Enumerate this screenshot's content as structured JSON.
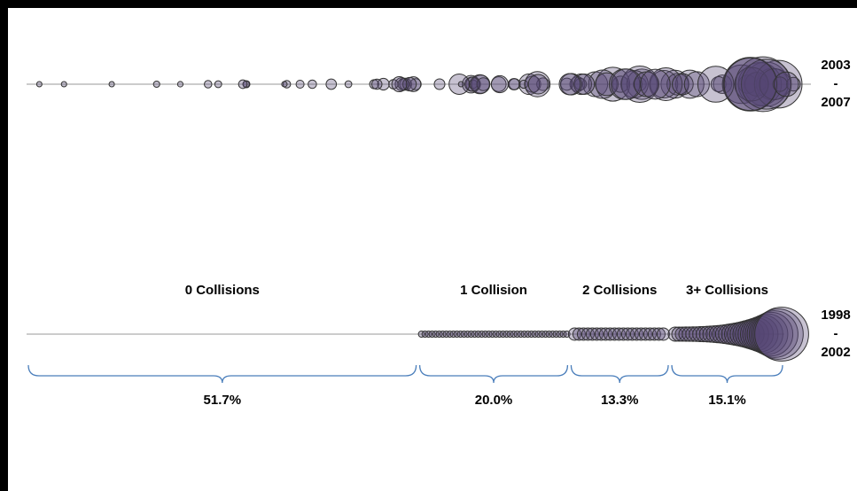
{
  "top_period": {
    "from": "2003",
    "sep": "-",
    "to": "2007"
  },
  "bottom_period": {
    "from": "1998",
    "sep": "-",
    "to": "2002"
  },
  "chart_data": {
    "type": "strip",
    "categories": [
      "0 Collisions",
      "1 Collision",
      "2 Collisions",
      "3+ Collisions"
    ],
    "values": [
      51.7,
      20.0,
      13.3,
      15.1
    ],
    "value_labels": [
      "51.7%",
      "20.0%",
      "13.3%",
      "15.1%"
    ],
    "color": "#4a7ebb"
  }
}
